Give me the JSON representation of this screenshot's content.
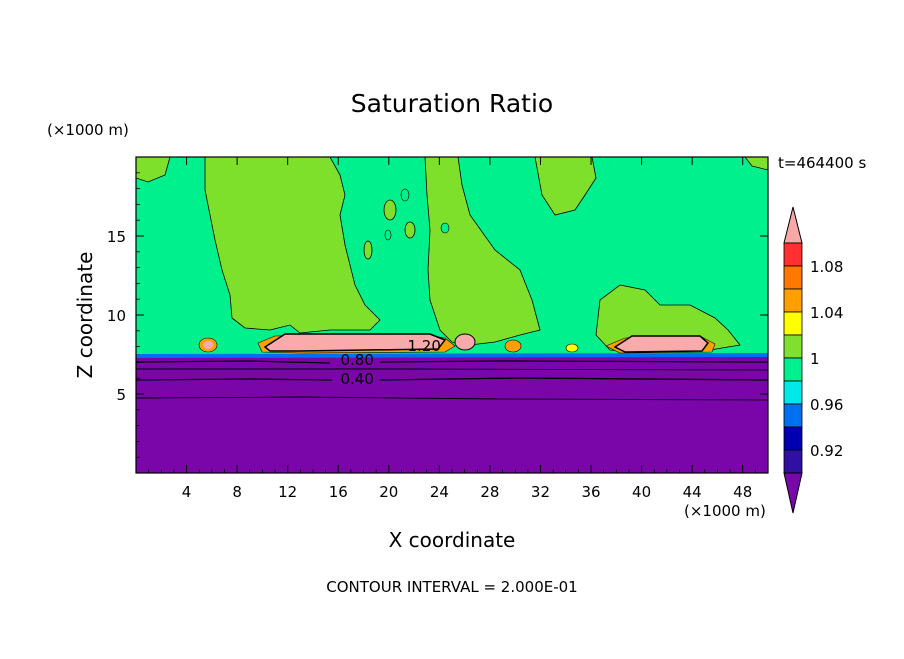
{
  "chart_data": {
    "type": "contour",
    "title": "Saturation Ratio",
    "xlabel": "X coordinate",
    "ylabel": "Z coordinate",
    "x_unit": "(×1000 m)",
    "y_unit": "(×1000 m)",
    "time_label": "t=464400 s",
    "footer": "CONTOUR INTERVAL = 2.000E-01",
    "xlim": [
      0,
      50
    ],
    "ylim": [
      0,
      20
    ],
    "x_ticks": [
      4,
      8,
      12,
      16,
      20,
      24,
      28,
      32,
      36,
      40,
      44,
      48
    ],
    "y_ticks": [
      5,
      10,
      15
    ],
    "contour_labels": [
      {
        "text": "1.20",
        "x": 22.8,
        "z": 8.1
      },
      {
        "text": "0.80",
        "x": 17.5,
        "z": 7.2
      },
      {
        "text": "0.40",
        "x": 17.5,
        "z": 6.0
      }
    ],
    "colorbar": {
      "labels": [
        "1.08",
        "1.04",
        "1",
        "0.96",
        "0.92"
      ],
      "colors": [
        "#f9a8a8",
        "#ff3030",
        "#ff7800",
        "#ffa000",
        "#ffff00",
        "#80e030",
        "#00f090",
        "#00e8e8",
        "#0070f0",
        "#0000b0",
        "#3010a0",
        "#7808a8"
      ]
    },
    "colors": {
      "subsaturated": "#7a06aa",
      "near_saturated": "#00f08e",
      "supersaturated_low": "#7fe02c",
      "cloud_core": "#f9abab"
    }
  }
}
